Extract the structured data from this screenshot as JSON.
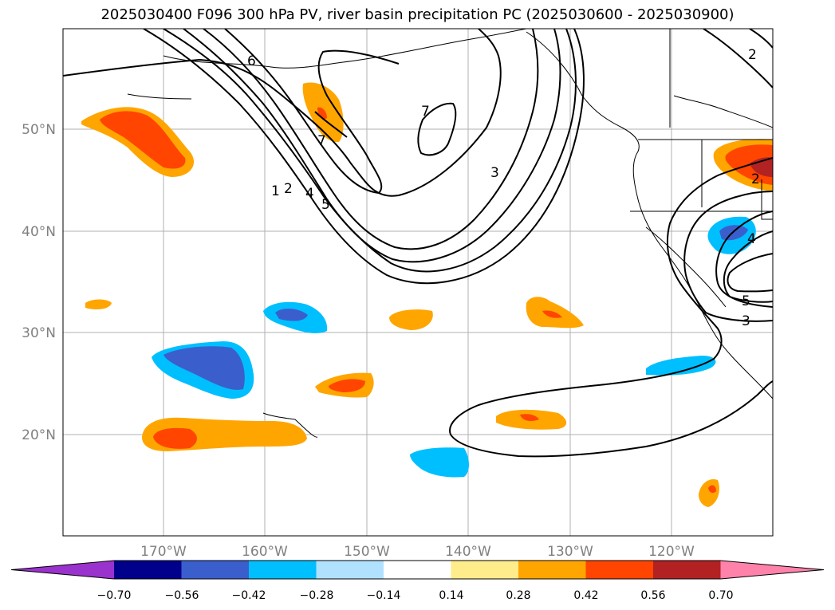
{
  "title": "2025030400 F096 300 hPa PV, river basin precipitation PC (2025030600 - 2025030900)",
  "map": {
    "lat_labels": [
      "50°N",
      "40°N",
      "30°N",
      "20°N"
    ],
    "lon_labels": [
      "170°W",
      "160°W",
      "150°W",
      "140°W",
      "130°W",
      "120°W"
    ],
    "contour_labels": [
      "6",
      "7",
      "7",
      "1",
      "2",
      "4",
      "5",
      "3",
      "2",
      "4",
      "5",
      "3",
      "2"
    ],
    "colors": {
      "gridline": "#b0b0b0",
      "contour": "#000000",
      "coast": "#000000"
    }
  },
  "colorbar": {
    "ticks": [
      "−0.70",
      "−0.56",
      "−0.42",
      "−0.28",
      "−0.14",
      "0.14",
      "0.28",
      "0.42",
      "0.56",
      "0.70"
    ],
    "colors": [
      "#9a32cd",
      "#00008b",
      "#3a5fcd",
      "#00bfff",
      "#b0e2ff",
      "#ffffff",
      "#ffec8b",
      "#ffa500",
      "#ff4500",
      "#b22222",
      "#ff82ab"
    ]
  }
}
